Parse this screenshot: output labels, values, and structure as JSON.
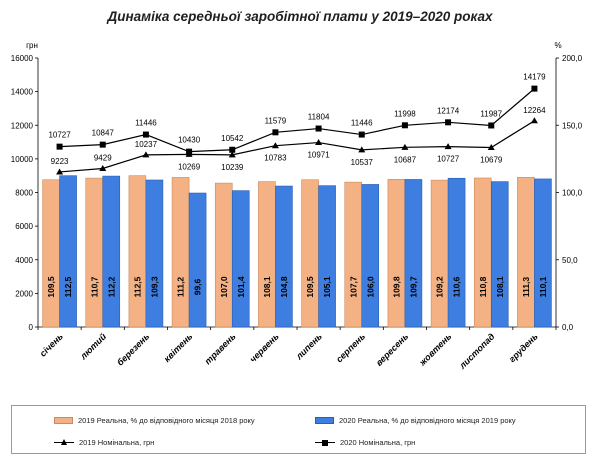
{
  "chart_data": {
    "type": "bar",
    "title": "Динаміка середньої заробітної плати у 2019–2020 роках",
    "left_axis_unit": "грн",
    "right_axis_unit": "%",
    "left_ylim": [
      0,
      16000
    ],
    "left_ticks": [
      "0",
      "2000",
      "4000",
      "6000",
      "8000",
      "10000",
      "12000",
      "14000",
      "16000"
    ],
    "right_ylim": [
      0,
      200
    ],
    "right_ticks": [
      "0,0",
      "50,0",
      "100,0",
      "150,0",
      "200,0"
    ],
    "categories": [
      "січень",
      "лютий",
      "березень",
      "квітень",
      "травень",
      "червень",
      "липень",
      "серпень",
      "вересень",
      "жовтень",
      "листопад",
      "грудень"
    ],
    "series": [
      {
        "name": "2019 Реальна, % до відповідного місяця 2018 року",
        "type": "bar",
        "axis": "right",
        "color": "#f4b183",
        "values": [
          109.5,
          110.7,
          112.5,
          111.2,
          107.0,
          108.1,
          109.5,
          107.7,
          109.8,
          109.2,
          110.8,
          111.3
        ],
        "labels": [
          "109,5",
          "110,7",
          "112,5",
          "111,2",
          "107,0",
          "108,1",
          "109,5",
          "107,7",
          "109,8",
          "109,2",
          "110,8",
          "111,3"
        ]
      },
      {
        "name": "2020 Реальна, % до відповідного місяця 2019 року",
        "type": "bar",
        "axis": "right",
        "color": "#3e7ee0",
        "values": [
          112.5,
          112.2,
          109.3,
          99.6,
          101.4,
          104.8,
          105.1,
          106.0,
          109.7,
          110.6,
          108.1,
          110.1
        ],
        "labels": [
          "112,5",
          "112,2",
          "109,3",
          "99,6",
          "101,4",
          "104,8",
          "105,1",
          "106,0",
          "109,7",
          "110,6",
          "108,1",
          "110,1"
        ]
      },
      {
        "name": "2019 Номінальна, грн",
        "type": "line",
        "axis": "left",
        "marker": "triangle",
        "values": [
          9223,
          9429,
          10237,
          10269,
          10239,
          10783,
          10971,
          10537,
          10687,
          10727,
          10679,
          12264
        ]
      },
      {
        "name": "2020 Номінальна, грн",
        "type": "line",
        "axis": "left",
        "marker": "square",
        "values": [
          10727,
          10847,
          11446,
          10430,
          10542,
          11579,
          11804,
          11446,
          11998,
          12174,
          11987,
          14179
        ]
      }
    ],
    "legend_position": "bottom",
    "grid": false
  }
}
